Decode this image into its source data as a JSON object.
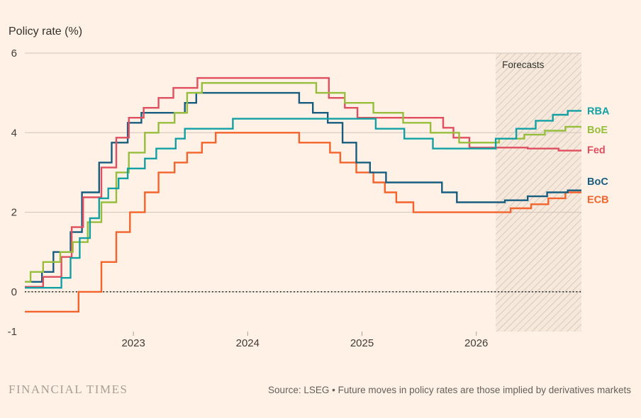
{
  "header": {
    "title": "Policy rate (%)"
  },
  "footer": {
    "logo": "FINANCIAL TIMES",
    "source": "Source: LSEG • Future moves in policy rates are those implied by derivatives markets"
  },
  "colors": {
    "background": "#fff1e5",
    "grid": "#cfc3b8",
    "zero_line": "#1a1817",
    "hatch_line": "#c9bcaf",
    "hatch_bg": "#f6e9dc",
    "tick_mark": "#a99f94",
    "title_text": "#33302c",
    "rba": "#12a0a5",
    "boe": "#96be3c",
    "fed": "#e04f5f",
    "boc": "#175d80",
    "ecb": "#f3632b"
  },
  "chart_data": {
    "type": "line",
    "step": true,
    "title": "Policy rate (%)",
    "ylabel": "Policy rate (%)",
    "xlabel": "",
    "xlim": [
      2022.05,
      2026.92
    ],
    "ylim": [
      -1,
      6
    ],
    "y_ticks": [
      6,
      4,
      2,
      0,
      -1
    ],
    "y_gridlines": [
      6,
      4,
      2,
      0
    ],
    "x_ticks": [
      2023,
      2024,
      2025,
      2026
    ],
    "zero_line_dotted": true,
    "forecast_start": 2026.17,
    "forecast_label": "Forecasts",
    "legend_position": "right-edge-labels",
    "series": [
      {
        "name": "ECB",
        "color": "#f3632b",
        "label_value": 2.32,
        "points": [
          [
            2022.05,
            -0.5
          ],
          [
            2022.52,
            0.0
          ],
          [
            2022.72,
            0.75
          ],
          [
            2022.85,
            1.5
          ],
          [
            2022.97,
            2.0
          ],
          [
            2023.1,
            2.5
          ],
          [
            2023.22,
            3.0
          ],
          [
            2023.36,
            3.25
          ],
          [
            2023.47,
            3.5
          ],
          [
            2023.6,
            3.75
          ],
          [
            2023.72,
            4.0
          ],
          [
            2024.45,
            3.75
          ],
          [
            2024.72,
            3.5
          ],
          [
            2024.81,
            3.25
          ],
          [
            2024.95,
            3.0
          ],
          [
            2025.1,
            2.75
          ],
          [
            2025.2,
            2.5
          ],
          [
            2025.3,
            2.25
          ],
          [
            2025.45,
            2.0
          ],
          [
            2026.3,
            2.1
          ],
          [
            2026.48,
            2.2
          ],
          [
            2026.63,
            2.35
          ],
          [
            2026.78,
            2.5
          ]
        ]
      },
      {
        "name": "BoC",
        "color": "#175d80",
        "label_value": 2.78,
        "points": [
          [
            2022.05,
            0.25
          ],
          [
            2022.2,
            0.5
          ],
          [
            2022.3,
            1.0
          ],
          [
            2022.45,
            1.5
          ],
          [
            2022.55,
            2.5
          ],
          [
            2022.7,
            3.25
          ],
          [
            2022.81,
            3.75
          ],
          [
            2022.95,
            4.25
          ],
          [
            2023.07,
            4.5
          ],
          [
            2023.45,
            4.75
          ],
          [
            2023.55,
            5.0
          ],
          [
            2024.45,
            4.75
          ],
          [
            2024.57,
            4.5
          ],
          [
            2024.7,
            4.25
          ],
          [
            2024.83,
            3.75
          ],
          [
            2024.95,
            3.25
          ],
          [
            2025.07,
            3.0
          ],
          [
            2025.21,
            2.75
          ],
          [
            2025.7,
            2.5
          ],
          [
            2025.83,
            2.25
          ],
          [
            2026.25,
            2.3
          ],
          [
            2026.45,
            2.4
          ],
          [
            2026.62,
            2.5
          ],
          [
            2026.8,
            2.55
          ]
        ]
      },
      {
        "name": "Fed",
        "color": "#e04f5f",
        "label_value": 3.57,
        "points": [
          [
            2022.05,
            0.125
          ],
          [
            2022.21,
            0.375
          ],
          [
            2022.37,
            0.875
          ],
          [
            2022.46,
            1.625
          ],
          [
            2022.56,
            2.375
          ],
          [
            2022.72,
            3.125
          ],
          [
            2022.85,
            3.875
          ],
          [
            2022.96,
            4.375
          ],
          [
            2023.09,
            4.625
          ],
          [
            2023.22,
            4.875
          ],
          [
            2023.35,
            5.125
          ],
          [
            2023.56,
            5.375
          ],
          [
            2024.71,
            4.875
          ],
          [
            2024.85,
            4.625
          ],
          [
            2024.96,
            4.375
          ],
          [
            2025.71,
            4.125
          ],
          [
            2025.8,
            3.875
          ],
          [
            2025.94,
            3.625
          ],
          [
            2026.45,
            3.6
          ],
          [
            2026.72,
            3.55
          ]
        ]
      },
      {
        "name": "BoE",
        "color": "#96be3c",
        "label_value": 4.08,
        "points": [
          [
            2022.05,
            0.25
          ],
          [
            2022.1,
            0.5
          ],
          [
            2022.21,
            0.75
          ],
          [
            2022.36,
            1.0
          ],
          [
            2022.47,
            1.25
          ],
          [
            2022.6,
            1.75
          ],
          [
            2022.72,
            2.25
          ],
          [
            2022.85,
            3.0
          ],
          [
            2022.96,
            3.5
          ],
          [
            2023.1,
            4.0
          ],
          [
            2023.22,
            4.25
          ],
          [
            2023.36,
            4.5
          ],
          [
            2023.47,
            5.0
          ],
          [
            2023.6,
            5.25
          ],
          [
            2024.6,
            5.0
          ],
          [
            2024.85,
            4.75
          ],
          [
            2025.1,
            4.5
          ],
          [
            2025.36,
            4.25
          ],
          [
            2025.6,
            4.0
          ],
          [
            2025.85,
            3.75
          ],
          [
            2026.2,
            3.85
          ],
          [
            2026.42,
            3.95
          ],
          [
            2026.6,
            4.05
          ],
          [
            2026.78,
            4.15
          ]
        ]
      },
      {
        "name": "RBA",
        "color": "#12a0a5",
        "label_value": 4.55,
        "points": [
          [
            2022.05,
            0.1
          ],
          [
            2022.37,
            0.35
          ],
          [
            2022.45,
            0.85
          ],
          [
            2022.53,
            1.35
          ],
          [
            2022.62,
            1.85
          ],
          [
            2022.7,
            2.35
          ],
          [
            2022.78,
            2.6
          ],
          [
            2022.87,
            2.85
          ],
          [
            2022.95,
            3.1
          ],
          [
            2023.1,
            3.35
          ],
          [
            2023.2,
            3.6
          ],
          [
            2023.37,
            3.85
          ],
          [
            2023.45,
            4.1
          ],
          [
            2023.87,
            4.35
          ],
          [
            2025.12,
            4.1
          ],
          [
            2025.37,
            3.85
          ],
          [
            2025.62,
            3.6
          ],
          [
            2026.17,
            3.85
          ],
          [
            2026.35,
            4.1
          ],
          [
            2026.52,
            4.3
          ],
          [
            2026.67,
            4.45
          ],
          [
            2026.8,
            4.55
          ]
        ]
      }
    ]
  }
}
